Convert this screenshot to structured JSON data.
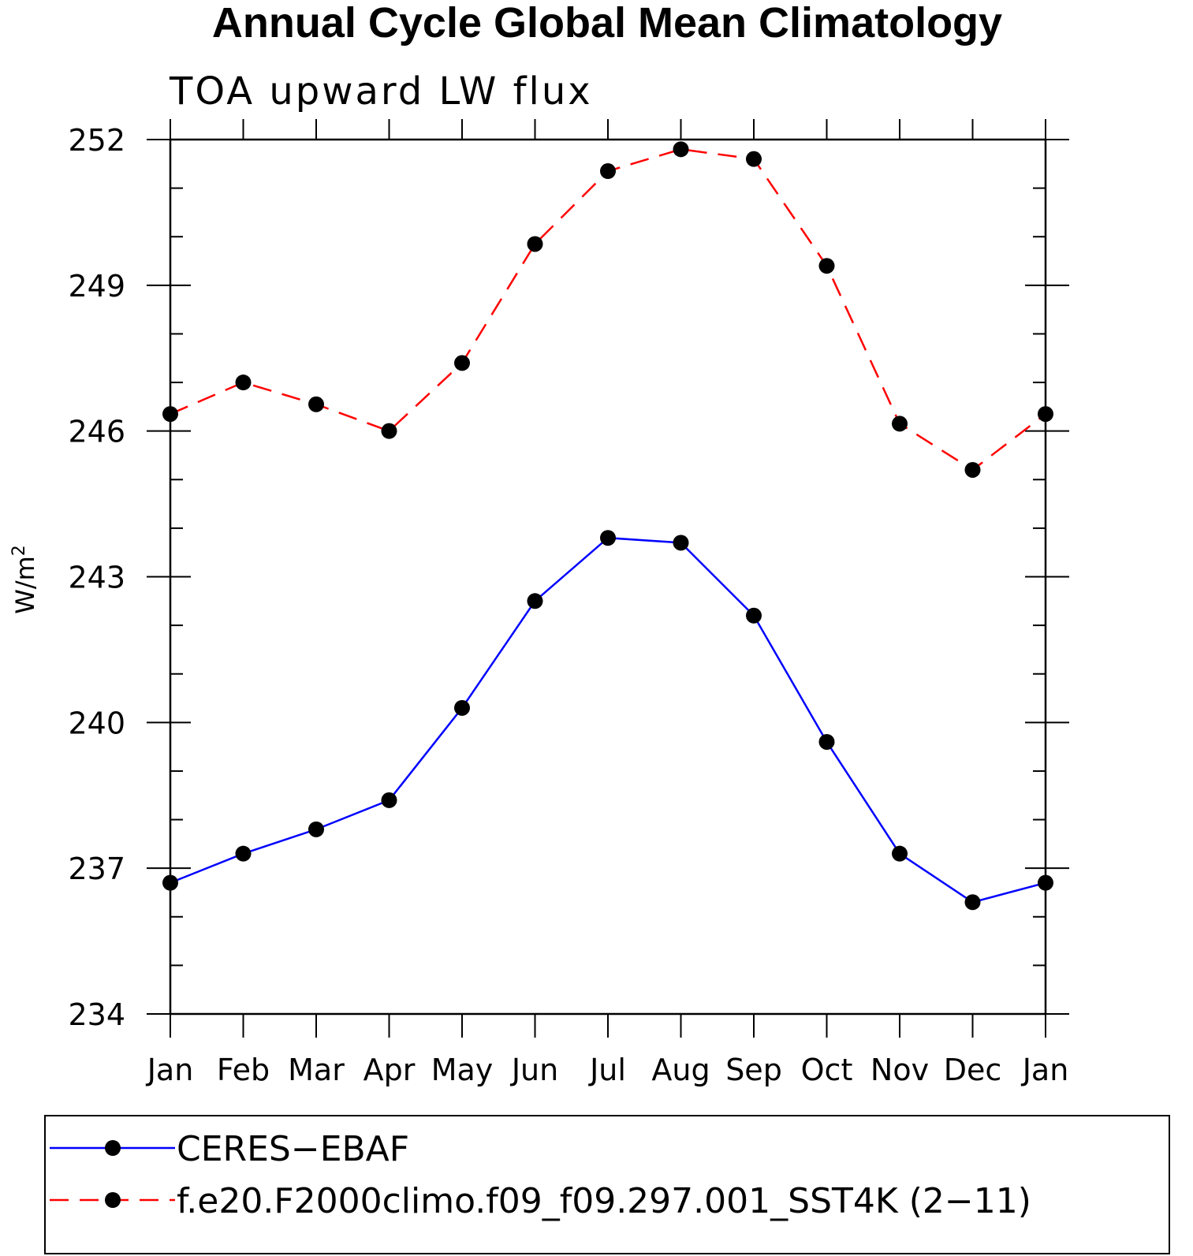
{
  "chart_data": {
    "type": "line",
    "title": "Annual Cycle Global Mean Climatology",
    "subtitle": "TOA upward LW flux",
    "ylabel": "W/m",
    "ylabel_superscript": "2",
    "xlabel": "",
    "ylim": [
      234,
      252
    ],
    "yticks": [
      234,
      237,
      240,
      243,
      246,
      249,
      252
    ],
    "categories": [
      "Jan",
      "Feb",
      "Mar",
      "Apr",
      "May",
      "Jun",
      "Jul",
      "Aug",
      "Sep",
      "Oct",
      "Nov",
      "Dec",
      "Jan"
    ],
    "series": [
      {
        "name": "CERES−EBAF",
        "color": "#0000ff",
        "style": "solid",
        "marker": "circle",
        "values": [
          236.7,
          237.3,
          237.8,
          238.4,
          240.3,
          242.5,
          243.8,
          243.7,
          242.2,
          239.6,
          237.3,
          236.3,
          236.7
        ]
      },
      {
        "name": "f.e20.F2000climo.f09_f09.297.001_SST4K (2−11)",
        "color": "#ff0000",
        "style": "dashed",
        "marker": "circle",
        "values": [
          246.35,
          247.0,
          246.55,
          246.0,
          247.4,
          249.85,
          251.35,
          251.8,
          251.6,
          249.4,
          246.15,
          245.2,
          246.35
        ]
      }
    ],
    "legend_position": "bottom"
  }
}
